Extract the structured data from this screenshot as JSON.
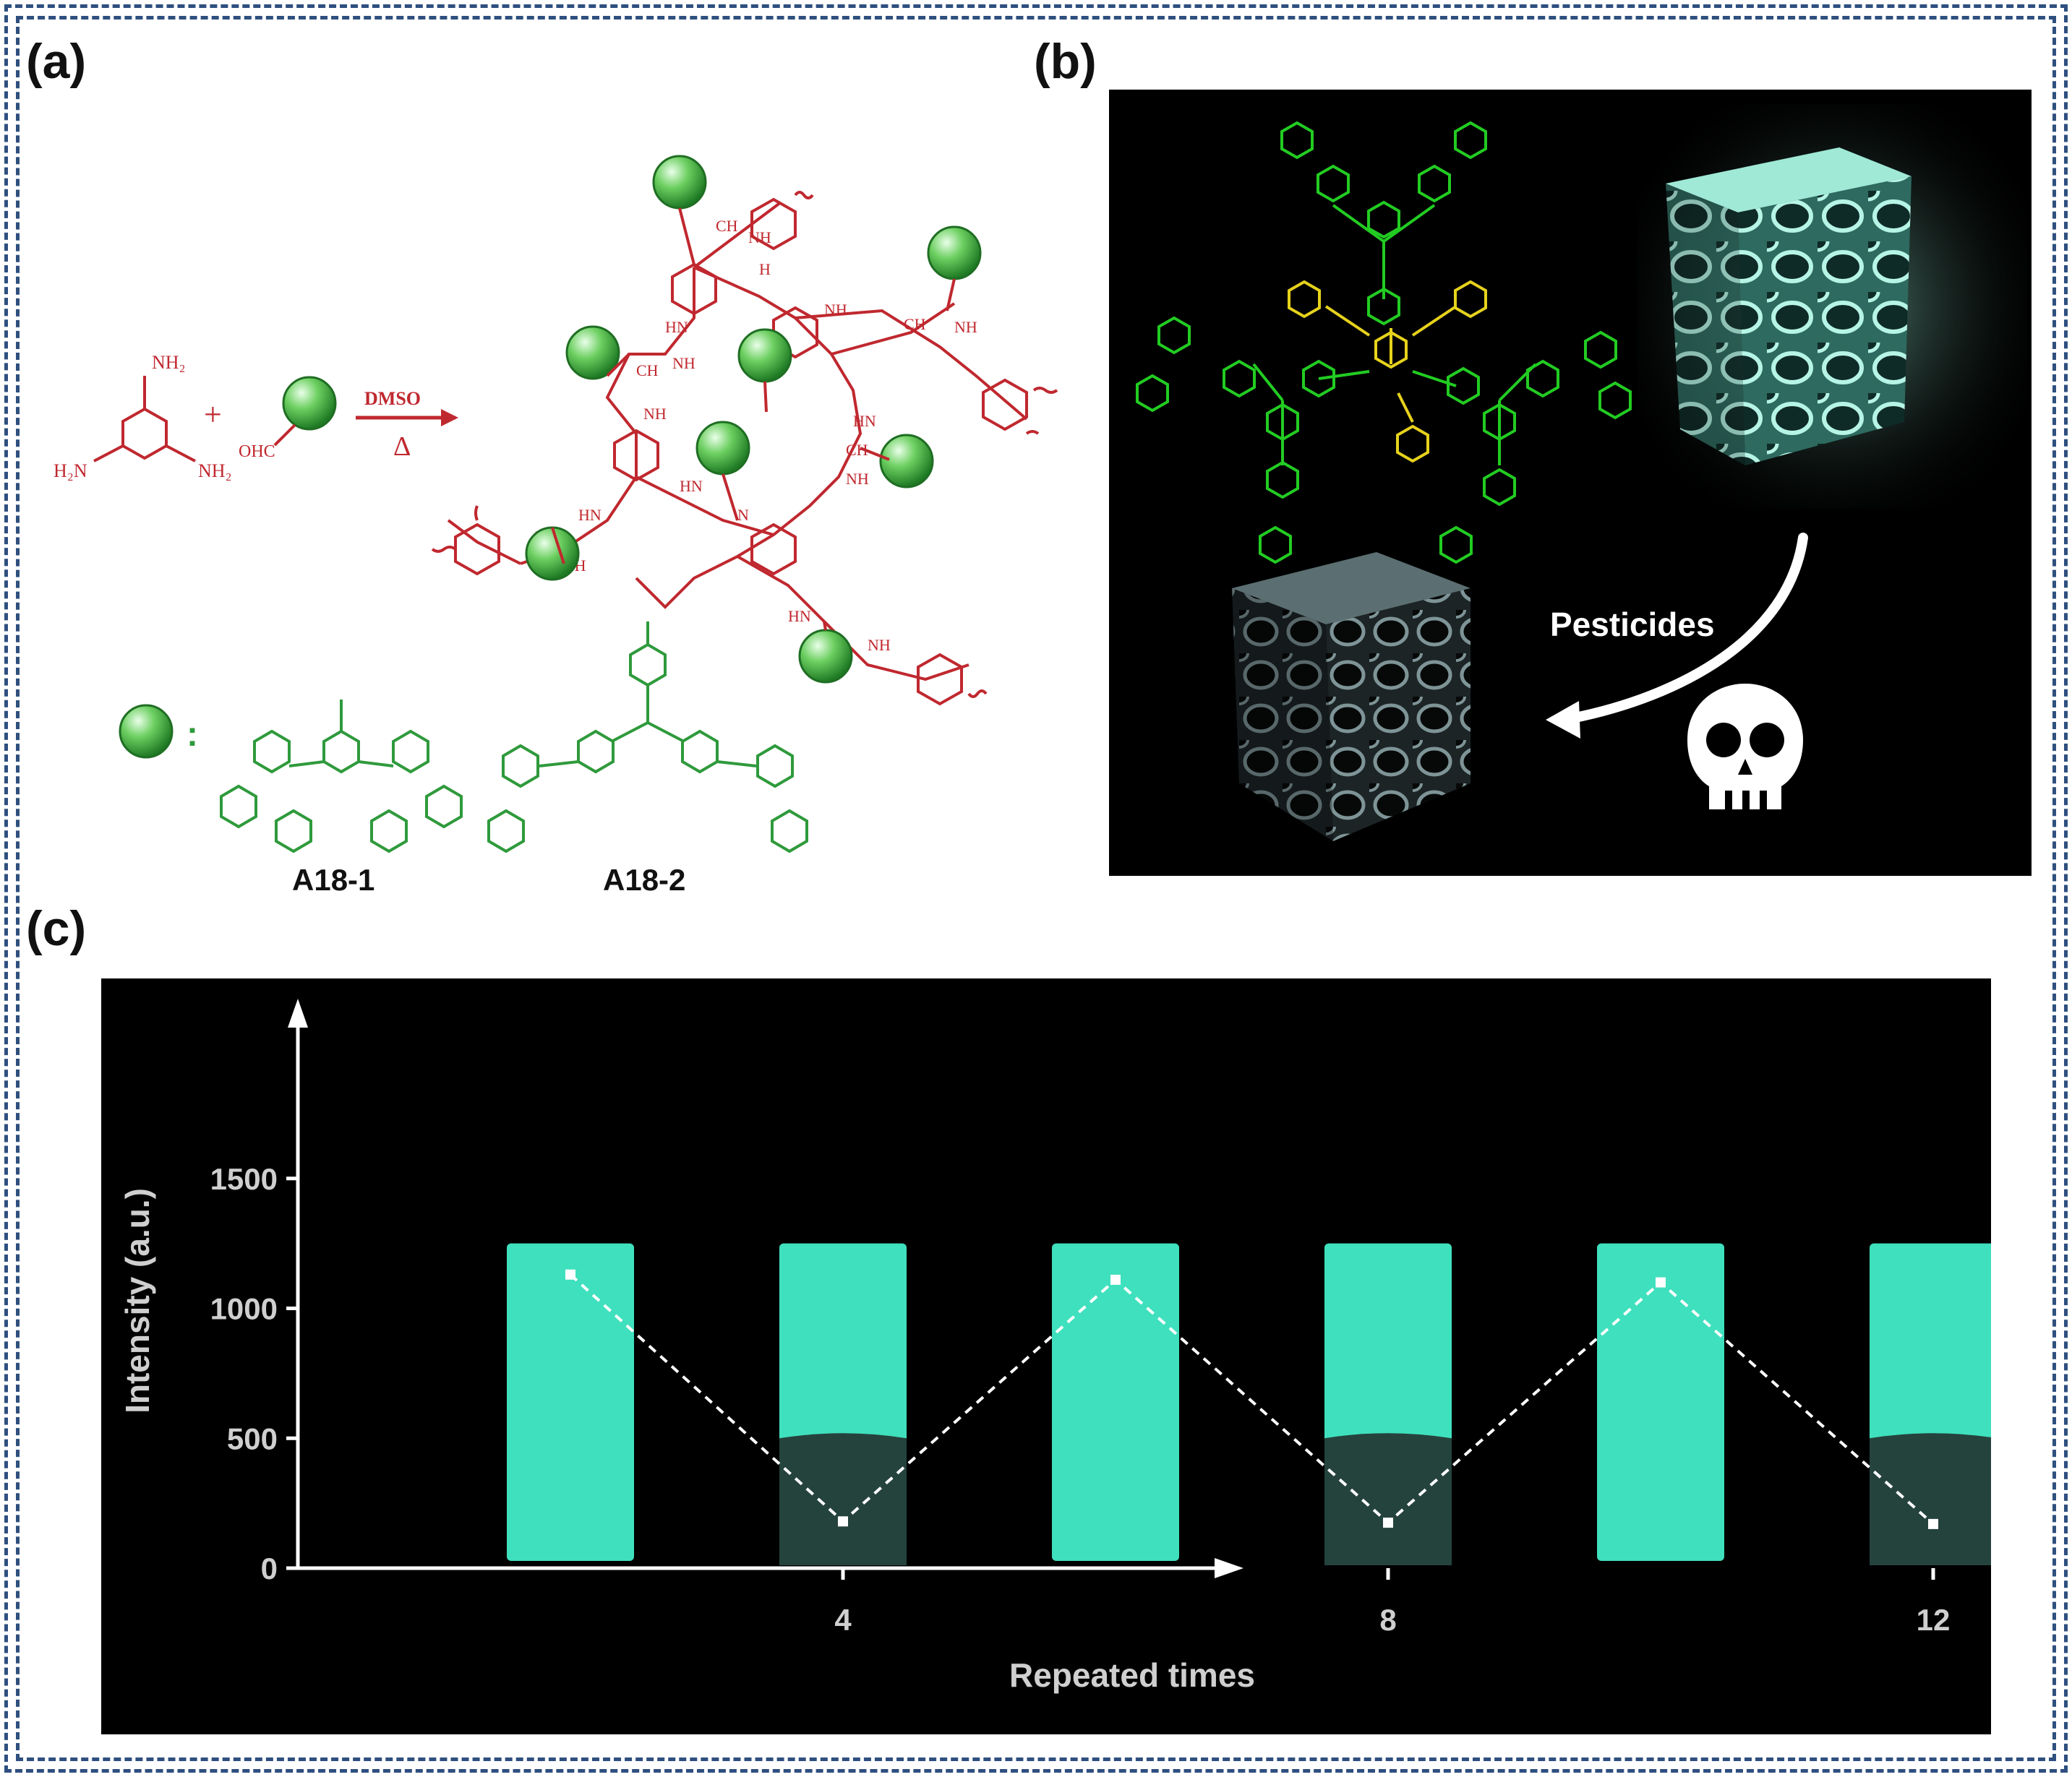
{
  "panels": {
    "a": {
      "label": "(a)",
      "reagent_amine": {
        "nh2": "NH₂",
        "h2n": "H₂N"
      },
      "reagent_aldehyde": "OHC",
      "plus": "+",
      "condition_top": "DMSO",
      "condition_bottom": "Δ",
      "network_labels": {
        "ch": "CH",
        "nh": "NH",
        "hn": "HN",
        "n": "N",
        "h": "H"
      },
      "legend_colon": ":",
      "structures": [
        "A18-1",
        "A18-2"
      ],
      "colors": {
        "network": "#c0282f",
        "sphere": "#3fa743",
        "structure": "#2f9a3c"
      }
    },
    "b": {
      "label": "(b)",
      "arrow_label": "Pesticides",
      "icon": "skull-icon",
      "colors": {
        "outer_ring": "#22cc22",
        "core": "#e6d21c",
        "cube_on": "#7fe0cc",
        "cube_off": "#6d7f82"
      }
    },
    "c": {
      "label": "(c)",
      "chart_data": {
        "type": "line",
        "xlabel": "Repeated times",
        "ylabel": "Intensity (a.u.)",
        "x_ticks": [
          4,
          8,
          12
        ],
        "y_ticks": [
          0,
          500,
          1000,
          1500
        ],
        "ylim": [
          0,
          1500
        ],
        "series": [
          {
            "x": [
              2,
              4,
              6,
              8,
              10,
              12
            ],
            "values": [
              1130,
              180,
              1110,
              175,
              1100,
              170
            ]
          }
        ],
        "colors": {
          "line": "#ffffff",
          "vial": "#3fe0bd",
          "sediment": "#25433d",
          "background": "#000000"
        }
      }
    }
  }
}
